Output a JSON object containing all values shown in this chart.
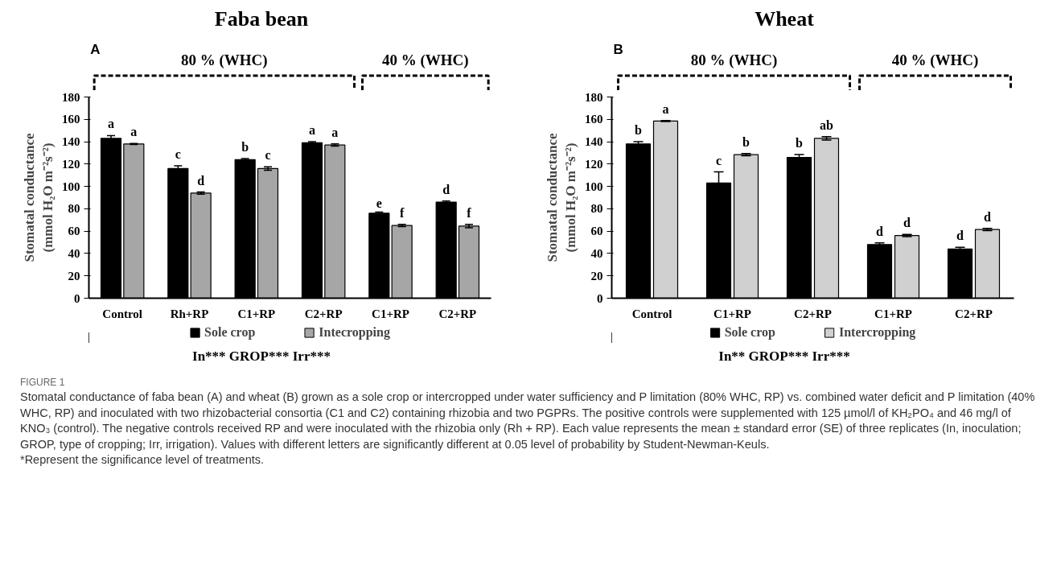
{
  "chart_data": [
    {
      "type": "bar",
      "title": "Faba bean",
      "ylabel": "Stomatal conductance (mmol H₂O m⁻²s⁻²)",
      "categories": [
        "Control",
        "Rh+RP",
        "C1+RP",
        "C2+RP",
        "C1+RP",
        "C2+RP"
      ],
      "ylim": [
        0,
        180
      ],
      "yticks": [
        0,
        20,
        40,
        60,
        80,
        100,
        120,
        140,
        160,
        180
      ],
      "legend": "bottom",
      "grid": false,
      "series": [
        {
          "name": "Sole crop",
          "color": "#000000",
          "values": [
            143,
            116,
            124,
            139,
            76,
            86
          ],
          "errors": [
            2.5,
            2.5,
            1,
            1,
            1,
            1
          ],
          "value_labels": [
            "a",
            "c",
            "b",
            "a",
            "e",
            "d"
          ]
        },
        {
          "name": "Intecropping",
          "color": "#a6a6a6",
          "values": [
            138,
            94,
            116,
            137,
            65,
            64.5
          ],
          "errors": [
            0.5,
            1,
            1.5,
            1,
            1,
            1.5
          ],
          "value_labels": [
            "a",
            "d",
            "c",
            "a",
            "f",
            "f"
          ]
        }
      ],
      "annotations": [
        "A",
        "80 % (WHC)",
        "40 % (WHC)",
        "In*** GROP*** Irr***"
      ]
    },
    {
      "type": "bar",
      "title": "Wheat",
      "ylabel": "Stomatal conductance (mmol H₂O m⁻²s⁻²)",
      "categories": [
        "Control",
        "C1+RP",
        "C2+RP",
        "C1+RP",
        "C2+RP"
      ],
      "ylim": [
        0,
        180
      ],
      "yticks": [
        0,
        20,
        40,
        60,
        80,
        100,
        120,
        140,
        160,
        180
      ],
      "legend": "bottom",
      "grid": false,
      "series": [
        {
          "name": "Sole crop",
          "color": "#000000",
          "values": [
            138,
            103,
            126,
            48,
            44
          ],
          "errors": [
            2,
            10,
            2.5,
            1.5,
            1.5
          ],
          "value_labels": [
            "b",
            "c",
            "b",
            "d",
            "d"
          ]
        },
        {
          "name": "Intercropping",
          "color": "#d0d0d0",
          "values": [
            158.5,
            128.5,
            143,
            56,
            61.5
          ],
          "errors": [
            0.5,
            1,
            1.5,
            1,
            1
          ],
          "value_labels": [
            "a",
            "b",
            "ab",
            "d",
            "d"
          ]
        }
      ],
      "annotations": [
        "B",
        "80 % (WHC)",
        "40 % (WHC)",
        "In** GROP*** Irr***",
        "FIGURE 1",
        "Stomatal conductance of faba bean (A) and wheat (B) grown as a sole crop or intercropped under water sufficiency and P limitation (80% WHC, RP) vs. combined water deficit and P limitation (40% WHC, RP) and inoculated with two rhizobacterial consortia (C1 and C2) containing rhizobia and two PGPRs. The positive controls were supplemented with 125 µmol/l of KH₂PO₄ and 46 mg/l of KNO₃ (control). The negative controls received RP and were inoculated with the rhizobia only (Rh + RP). Each value represents the mean ± standard error (SE) of three replicates (In, inoculation; GROP, type of cropping; Irr, irrigation). Values with different letters are significantly different at 0.05 level of probability by Student-Newman-Keuls.",
        "*Represent the significance level of treatments."
      ]
    }
  ]
}
